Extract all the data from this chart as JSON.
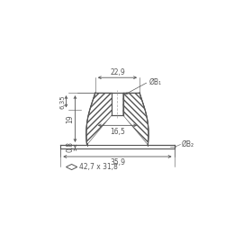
{
  "bg_color": "#ffffff",
  "line_color": "#555555",
  "dim_color": "#555555",
  "fig_width": 2.5,
  "fig_height": 2.5,
  "dpi": 100,
  "dim_22_9": "22,9",
  "dim_B1": "ØB₁",
  "dim_16_5": "16,5",
  "dim_B2": "ØB₂",
  "dim_6_35": "6,35",
  "dim_19": "19",
  "dim_0_8": "0,8",
  "dim_35_9": "35,9",
  "dim_42_7": "42,7 x 31,8"
}
